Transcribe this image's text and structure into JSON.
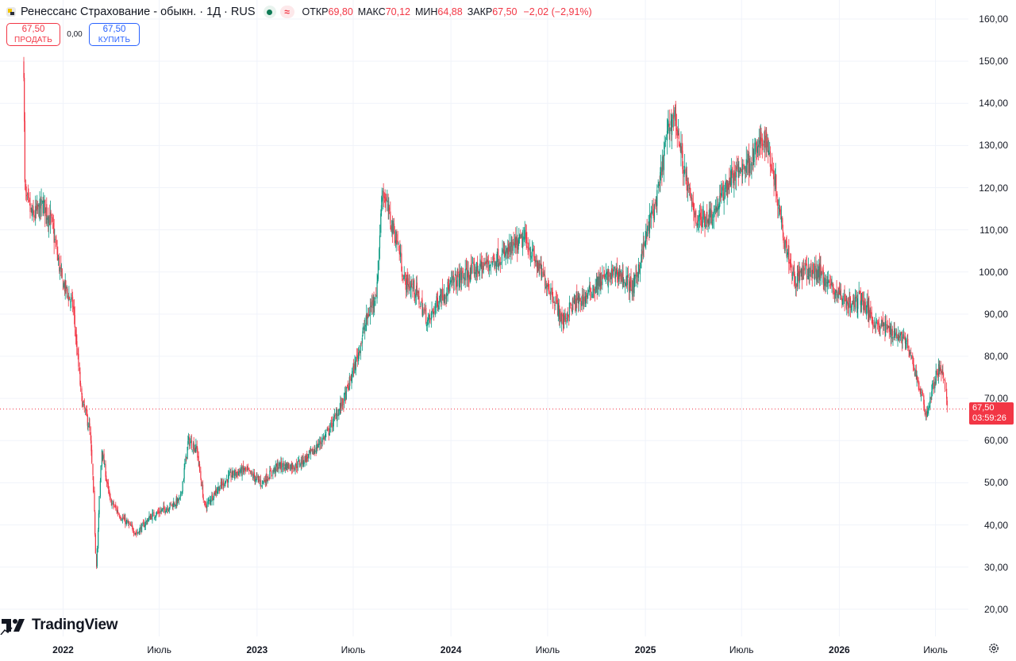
{
  "header": {
    "title": "Ренессанс Страхование - обыкн. · 1Д · RUS",
    "approx_symbol": "≈",
    "ohlc": {
      "open_label": "ОТКР",
      "open": "69,80",
      "high_label": "МАКС",
      "high": "70,12",
      "low_label": "МИН",
      "low": "64,88",
      "close_label": "ЗАКР",
      "close": "67,50",
      "change": "−2,02 (−2,91%)"
    }
  },
  "trade": {
    "sell_price": "67,50",
    "sell_label": "ПРОДАТЬ",
    "spread": "0,00",
    "buy_price": "67,50",
    "buy_label": "КУПИТЬ"
  },
  "price_tag": {
    "price": "67,50",
    "countdown": "03:59:26"
  },
  "branding": {
    "logo_text": "TradingView"
  },
  "colors": {
    "up": "#089981",
    "down": "#f23645",
    "grid": "#f0f3fa",
    "text": "#131722",
    "buy": "#2962ff"
  },
  "icons": [
    "symbol-logo-icon",
    "market-status-icon",
    "tradingview-logo-icon",
    "settings-icon"
  ],
  "chart_data": {
    "type": "line",
    "style": "daily candlesticks",
    "y_axis": {
      "range": [
        14.5,
        164.5
      ],
      "ticks": [
        "160,00",
        "150,00",
        "140,00",
        "130,00",
        "120,00",
        "110,00",
        "100,00",
        "90,00",
        "80,00",
        "70,00",
        "60,00",
        "50,00",
        "40,00",
        "30,00",
        "20,00"
      ],
      "tick_values": [
        160,
        150,
        140,
        130,
        120,
        110,
        100,
        90,
        80,
        70,
        60,
        50,
        40,
        30,
        20
      ]
    },
    "x_axis": {
      "range": [
        "2021-10-19",
        "2026-08-17"
      ],
      "ticks": [
        {
          "label": "2022",
          "date": "2022-01-01",
          "major": true
        },
        {
          "label": "Июль",
          "date": "2022-07-01",
          "major": false
        },
        {
          "label": "2023",
          "date": "2023-01-01",
          "major": true
        },
        {
          "label": "Июль",
          "date": "2023-07-01",
          "major": false
        },
        {
          "label": "2024",
          "date": "2024-01-01",
          "major": true
        },
        {
          "label": "Июль",
          "date": "2024-07-01",
          "major": false
        },
        {
          "label": "2025",
          "date": "2025-01-01",
          "major": true
        },
        {
          "label": "Июль",
          "date": "2025-07-01",
          "major": false
        },
        {
          "label": "2026",
          "date": "2026-01-01",
          "major": true
        },
        {
          "label": "Июль",
          "date": "2026-07-01",
          "major": false
        }
      ]
    },
    "grid": true,
    "last_price": 67.5,
    "series": [
      {
        "values_approx": true,
        "points": [
          {
            "x": "2021-10-19",
            "y": 149
          },
          {
            "x": "2021-10-22",
            "y": 118
          },
          {
            "x": "2021-11-05",
            "y": 113
          },
          {
            "x": "2021-11-25",
            "y": 116
          },
          {
            "x": "2021-12-10",
            "y": 112
          },
          {
            "x": "2021-12-30",
            "y": 98
          },
          {
            "x": "2022-01-20",
            "y": 92
          },
          {
            "x": "2022-02-05",
            "y": 70
          },
          {
            "x": "2022-02-20",
            "y": 63
          },
          {
            "x": "2022-02-26",
            "y": 52
          },
          {
            "x": "2022-03-05",
            "y": 30
          },
          {
            "x": "2022-03-15",
            "y": 58
          },
          {
            "x": "2022-03-30",
            "y": 46
          },
          {
            "x": "2022-04-20",
            "y": 42
          },
          {
            "x": "2022-05-20",
            "y": 38
          },
          {
            "x": "2022-06-15",
            "y": 42
          },
          {
            "x": "2022-07-15",
            "y": 44
          },
          {
            "x": "2022-08-10",
            "y": 46
          },
          {
            "x": "2022-08-25",
            "y": 60
          },
          {
            "x": "2022-09-10",
            "y": 58
          },
          {
            "x": "2022-09-25",
            "y": 44
          },
          {
            "x": "2022-10-15",
            "y": 48
          },
          {
            "x": "2022-11-15",
            "y": 52
          },
          {
            "x": "2022-12-10",
            "y": 53
          },
          {
            "x": "2023-01-10",
            "y": 50
          },
          {
            "x": "2023-02-10",
            "y": 54
          },
          {
            "x": "2023-03-15",
            "y": 54
          },
          {
            "x": "2023-04-15",
            "y": 57
          },
          {
            "x": "2023-05-15",
            "y": 62
          },
          {
            "x": "2023-06-15",
            "y": 70
          },
          {
            "x": "2023-07-05",
            "y": 78
          },
          {
            "x": "2023-07-25",
            "y": 88
          },
          {
            "x": "2023-08-15",
            "y": 96
          },
          {
            "x": "2023-08-25",
            "y": 120
          },
          {
            "x": "2023-09-10",
            "y": 112
          },
          {
            "x": "2023-09-25",
            "y": 106
          },
          {
            "x": "2023-10-05",
            "y": 98
          },
          {
            "x": "2023-10-25",
            "y": 96
          },
          {
            "x": "2023-11-20",
            "y": 88
          },
          {
            "x": "2023-12-10",
            "y": 94
          },
          {
            "x": "2024-01-10",
            "y": 98
          },
          {
            "x": "2024-02-10",
            "y": 100
          },
          {
            "x": "2024-03-10",
            "y": 102
          },
          {
            "x": "2024-04-10",
            "y": 104
          },
          {
            "x": "2024-05-20",
            "y": 108
          },
          {
            "x": "2024-06-10",
            "y": 102
          },
          {
            "x": "2024-07-10",
            "y": 95
          },
          {
            "x": "2024-07-30",
            "y": 88
          },
          {
            "x": "2024-08-15",
            "y": 92
          },
          {
            "x": "2024-09-10",
            "y": 94
          },
          {
            "x": "2024-10-10",
            "y": 98
          },
          {
            "x": "2024-11-10",
            "y": 100
          },
          {
            "x": "2024-12-10",
            "y": 96
          },
          {
            "x": "2025-01-10",
            "y": 112
          },
          {
            "x": "2025-01-25",
            "y": 118
          },
          {
            "x": "2025-02-10",
            "y": 132
          },
          {
            "x": "2025-02-25",
            "y": 138
          },
          {
            "x": "2025-03-10",
            "y": 128
          },
          {
            "x": "2025-03-25",
            "y": 118
          },
          {
            "x": "2025-04-10",
            "y": 112
          },
          {
            "x": "2025-05-10",
            "y": 114
          },
          {
            "x": "2025-06-10",
            "y": 122
          },
          {
            "x": "2025-07-15",
            "y": 126
          },
          {
            "x": "2025-08-15",
            "y": 132
          },
          {
            "x": "2025-08-30",
            "y": 124
          },
          {
            "x": "2025-09-20",
            "y": 108
          },
          {
            "x": "2025-10-10",
            "y": 98
          },
          {
            "x": "2025-10-25",
            "y": 100
          },
          {
            "x": "2025-11-25",
            "y": 100
          },
          {
            "x": "2025-12-20",
            "y": 96
          },
          {
            "x": "2026-01-25",
            "y": 92
          },
          {
            "x": "2026-02-10",
            "y": 94
          },
          {
            "x": "2026-03-10",
            "y": 88
          },
          {
            "x": "2026-04-10",
            "y": 86
          },
          {
            "x": "2026-05-05",
            "y": 84
          },
          {
            "x": "2026-05-25",
            "y": 76
          },
          {
            "x": "2026-06-15",
            "y": 66
          },
          {
            "x": "2026-06-25",
            "y": 72
          },
          {
            "x": "2026-07-10",
            "y": 78
          },
          {
            "x": "2026-07-20",
            "y": 72
          },
          {
            "x": "2026-07-25",
            "y": 67.5
          }
        ]
      }
    ]
  }
}
